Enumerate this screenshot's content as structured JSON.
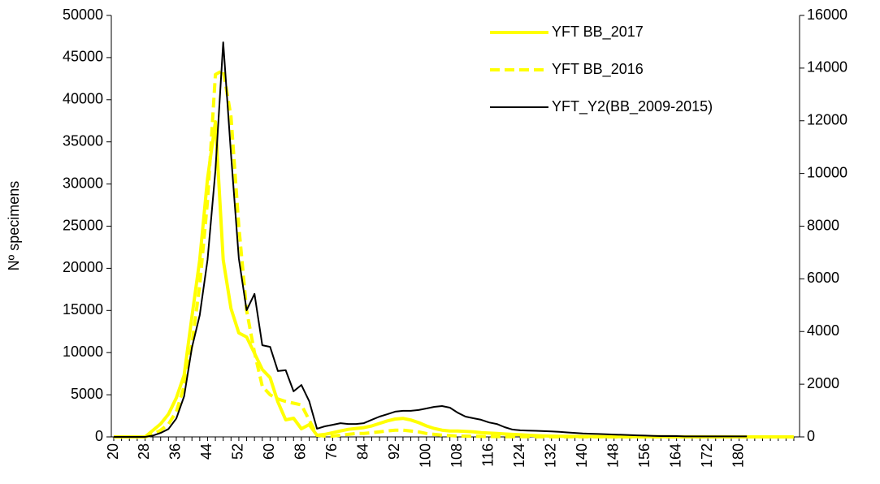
{
  "chart_data": {
    "type": "line",
    "y_label": "Nº specimens",
    "categories": [
      20,
      null,
      null,
      null,
      28,
      null,
      null,
      null,
      36,
      null,
      null,
      null,
      44,
      null,
      null,
      null,
      52,
      null,
      null,
      null,
      60,
      null,
      null,
      null,
      68,
      null,
      null,
      null,
      76,
      null,
      null,
      null,
      84,
      null,
      null,
      null,
      92,
      null,
      null,
      null,
      100,
      null,
      null,
      null,
      108,
      null,
      null,
      null,
      116,
      null,
      null,
      null,
      124,
      null,
      null,
      null,
      132,
      null,
      null,
      null,
      140,
      null,
      null,
      null,
      148,
      null,
      null,
      null,
      156,
      null,
      null,
      null,
      164,
      null,
      null,
      null,
      172,
      null,
      null,
      null,
      180,
      null,
      null,
      null,
      null,
      null,
      null,
      null
    ],
    "ylim": [
      0,
      50000
    ],
    "yticks": [
      0,
      5000,
      10000,
      15000,
      20000,
      25000,
      30000,
      35000,
      40000,
      45000,
      50000
    ],
    "y2lim": [
      0,
      16000
    ],
    "y2ticks": [
      0,
      2000,
      4000,
      6000,
      8000,
      10000,
      12000,
      14000,
      16000
    ],
    "legend": "upper right",
    "series": [
      {
        "name": "YFT BB_2017",
        "color": "#ffff00",
        "style": "solid",
        "values": [
          0,
          0,
          0,
          0,
          0,
          770,
          1540,
          2700,
          4620,
          7320,
          14260,
          21000,
          30640,
          37380,
          21000,
          15220,
          12330,
          11850,
          9920,
          8000,
          7030,
          4140,
          2020,
          2220,
          960,
          1450,
          190,
          300,
          500,
          700,
          900,
          1000,
          1100,
          1300,
          1600,
          1900,
          2120,
          2200,
          2000,
          1700,
          1300,
          1000,
          800,
          700,
          700,
          650,
          600,
          500,
          450,
          400,
          350,
          300,
          250,
          200,
          150,
          120,
          100,
          80,
          70,
          60,
          50,
          40,
          30,
          30,
          20,
          20,
          20,
          20,
          20,
          20,
          20,
          20,
          10,
          10,
          10,
          10,
          10,
          10,
          10,
          10,
          0,
          0,
          0,
          0,
          0,
          0,
          0,
          0
        ]
      },
      {
        "name": "YFT BB_2016",
        "color": "#ffff00",
        "style": "dashed",
        "values": [
          0,
          0,
          0,
          0,
          0,
          300,
          800,
          1500,
          3000,
          6000,
          11000,
          18000,
          28000,
          43000,
          43500,
          38000,
          25000,
          15000,
          10000,
          6000,
          5000,
          4500,
          4200,
          4000,
          3800,
          2000,
          200,
          100,
          100,
          200,
          300,
          400,
          400,
          500,
          600,
          700,
          800,
          800,
          700,
          600,
          400,
          300,
          200,
          150,
          100,
          100,
          80,
          60,
          50,
          40,
          30,
          20,
          20,
          20,
          10,
          10,
          10,
          10,
          10,
          10,
          10,
          10,
          10,
          10,
          0,
          0,
          0,
          0,
          0,
          0,
          0,
          0,
          0,
          0,
          0,
          0,
          0,
          0,
          0,
          0,
          0,
          0,
          0,
          0,
          0,
          0,
          0,
          0
        ]
      },
      {
        "name": "YFT_Y2(BB_2009-2015)",
        "color": "#000000",
        "style": "solid",
        "axis": "y2",
        "values": [
          0,
          0,
          0,
          0,
          0,
          50,
          150,
          300,
          700,
          1540,
          3390,
          4620,
          6720,
          10110,
          14980,
          10730,
          6780,
          4810,
          5430,
          3480,
          3420,
          2500,
          2530,
          1730,
          1970,
          1360,
          310,
          400,
          460,
          520,
          490,
          490,
          520,
          650,
          770,
          860,
          960,
          990,
          990,
          1020,
          1080,
          1140,
          1170,
          1110,
          920,
          770,
          710,
          650,
          550,
          490,
          370,
          280,
          250,
          240,
          230,
          220,
          210,
          190,
          170,
          150,
          130,
          120,
          110,
          100,
          90,
          80,
          70,
          60,
          50,
          40,
          30,
          30,
          30,
          20,
          20,
          20,
          20,
          20,
          20,
          20,
          20,
          20,
          null,
          null,
          null,
          null,
          null,
          null
        ]
      }
    ]
  }
}
